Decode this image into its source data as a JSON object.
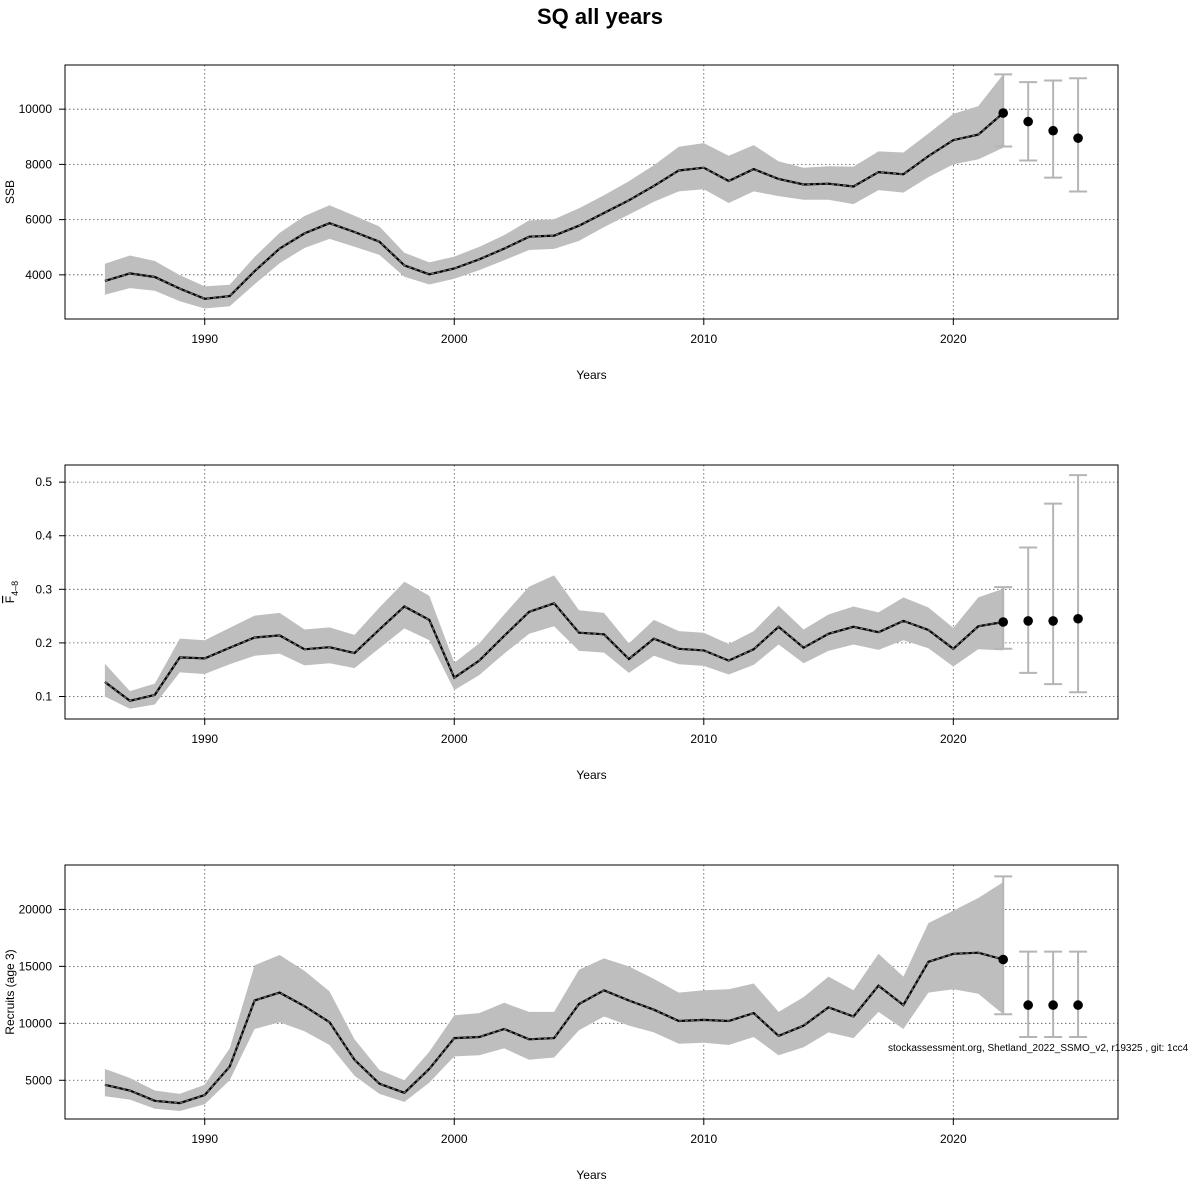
{
  "title": "SQ all years",
  "footnote": "stockassessment.org, Shetland_2022_SSMO_v2, r19325 , git: 1cc4",
  "chart_data": [
    {
      "type": "line",
      "ylabel": "SSB",
      "xlabel": "Years",
      "xlim": [
        1984.4,
        2026.6
      ],
      "ylim": [
        2400,
        11600
      ],
      "xticks": [
        1990,
        2000,
        2010,
        2020
      ],
      "yticks": [
        4000,
        6000,
        8000,
        10000
      ],
      "grid": true,
      "x": [
        1986,
        1987,
        1988,
        1989,
        1990,
        1991,
        1992,
        1993,
        1994,
        1995,
        1996,
        1997,
        1998,
        1999,
        2000,
        2001,
        2002,
        2003,
        2004,
        2005,
        2006,
        2007,
        2008,
        2009,
        2010,
        2011,
        2012,
        2013,
        2014,
        2015,
        2016,
        2017,
        2018,
        2019,
        2020,
        2021,
        2022
      ],
      "estimate": [
        3780,
        4050,
        3920,
        3500,
        3130,
        3230,
        4130,
        4950,
        5500,
        5870,
        5550,
        5200,
        4340,
        4020,
        4230,
        4560,
        4950,
        5380,
        5420,
        5780,
        6240,
        6700,
        7220,
        7780,
        7880,
        7400,
        7830,
        7470,
        7270,
        7300,
        7200,
        7720,
        7640,
        8300,
        8880,
        9080,
        9860
      ],
      "lower": [
        3280,
        3520,
        3420,
        3040,
        2780,
        2860,
        3660,
        4420,
        4970,
        5300,
        5020,
        4720,
        3930,
        3650,
        3860,
        4170,
        4530,
        4900,
        4940,
        5230,
        5730,
        6180,
        6650,
        7020,
        7100,
        6600,
        7020,
        6850,
        6720,
        6720,
        6560,
        7070,
        6980,
        7540,
        8000,
        8180,
        8600
      ],
      "upper": [
        4400,
        4700,
        4500,
        3990,
        3580,
        3640,
        4650,
        5520,
        6130,
        6520,
        6140,
        5750,
        4800,
        4450,
        4660,
        5010,
        5440,
        5970,
        6010,
        6410,
        6880,
        7390,
        7970,
        8640,
        8770,
        8310,
        8700,
        8110,
        7880,
        7930,
        7920,
        8470,
        8430,
        9120,
        9830,
        10110,
        11260
      ],
      "forecast": {
        "x": [
          2022,
          2023,
          2024,
          2025
        ],
        "median": [
          9860,
          9550,
          9220,
          8950
        ],
        "lower": [
          8650,
          8140,
          7520,
          7020
        ],
        "upper": [
          11260,
          10980,
          11040,
          11120
        ]
      }
    },
    {
      "type": "line",
      "ylabel": "F4–8",
      "ylabel_main": "F",
      "ylabel_sub": "4–8",
      "xlabel": "Years",
      "xlim": [
        1984.4,
        2026.6
      ],
      "ylim": [
        0.058,
        0.532
      ],
      "xticks": [
        1990,
        2000,
        2010,
        2020
      ],
      "yticks": [
        0.1,
        0.2,
        0.3,
        0.4,
        0.5
      ],
      "grid": true,
      "x": [
        1986,
        1987,
        1988,
        1989,
        1990,
        1991,
        1992,
        1993,
        1994,
        1995,
        1996,
        1997,
        1998,
        1999,
        2000,
        2001,
        2002,
        2003,
        2004,
        2005,
        2006,
        2007,
        2008,
        2009,
        2010,
        2011,
        2012,
        2013,
        2014,
        2015,
        2016,
        2017,
        2018,
        2019,
        2020,
        2021,
        2022
      ],
      "estimate": [
        0.127,
        0.092,
        0.103,
        0.173,
        0.171,
        0.191,
        0.21,
        0.214,
        0.188,
        0.192,
        0.181,
        0.225,
        0.268,
        0.243,
        0.135,
        0.167,
        0.213,
        0.258,
        0.274,
        0.219,
        0.216,
        0.17,
        0.208,
        0.189,
        0.186,
        0.167,
        0.188,
        0.23,
        0.191,
        0.217,
        0.23,
        0.22,
        0.241,
        0.224,
        0.189,
        0.231,
        0.239
      ],
      "lower": [
        0.1,
        0.077,
        0.085,
        0.145,
        0.142,
        0.16,
        0.176,
        0.18,
        0.158,
        0.162,
        0.153,
        0.19,
        0.227,
        0.205,
        0.112,
        0.14,
        0.18,
        0.217,
        0.231,
        0.185,
        0.182,
        0.144,
        0.176,
        0.16,
        0.157,
        0.141,
        0.159,
        0.197,
        0.162,
        0.185,
        0.197,
        0.187,
        0.205,
        0.19,
        0.156,
        0.188,
        0.186
      ],
      "upper": [
        0.161,
        0.11,
        0.124,
        0.208,
        0.205,
        0.228,
        0.251,
        0.256,
        0.225,
        0.229,
        0.215,
        0.266,
        0.314,
        0.288,
        0.163,
        0.199,
        0.253,
        0.305,
        0.326,
        0.261,
        0.256,
        0.199,
        0.243,
        0.222,
        0.219,
        0.198,
        0.222,
        0.269,
        0.225,
        0.253,
        0.268,
        0.257,
        0.285,
        0.266,
        0.228,
        0.285,
        0.301
      ],
      "forecast": {
        "x": [
          2022,
          2023,
          2024,
          2025
        ],
        "median": [
          0.239,
          0.241,
          0.241,
          0.245
        ],
        "lower": [
          0.189,
          0.144,
          0.123,
          0.108
        ],
        "upper": [
          0.304,
          0.378,
          0.46,
          0.513
        ]
      }
    },
    {
      "type": "line",
      "ylabel": "Recruits (age 3)",
      "xlabel": "Years",
      "xlim": [
        1984.4,
        2026.6
      ],
      "ylim": [
        1600,
        23900
      ],
      "xticks": [
        1990,
        2000,
        2010,
        2020
      ],
      "yticks": [
        5000,
        10000,
        15000,
        20000
      ],
      "grid": true,
      "x": [
        1986,
        1987,
        1988,
        1989,
        1990,
        1991,
        1992,
        1993,
        1994,
        1995,
        1996,
        1997,
        1998,
        1999,
        2000,
        2001,
        2002,
        2003,
        2004,
        2005,
        2006,
        2007,
        2008,
        2009,
        2010,
        2011,
        2012,
        2013,
        2014,
        2015,
        2016,
        2017,
        2018,
        2019,
        2020,
        2021,
        2022
      ],
      "estimate": [
        4600,
        4100,
        3200,
        3000,
        3700,
        6200,
        12000,
        12700,
        11500,
        10100,
        6800,
        4700,
        3900,
        6000,
        8700,
        8800,
        9500,
        8600,
        8700,
        11700,
        12900,
        12000,
        11200,
        10200,
        10300,
        10200,
        10900,
        8900,
        9800,
        11400,
        10600,
        13300,
        11600,
        15400,
        16100,
        16200,
        15600
      ],
      "lower": [
        3600,
        3300,
        2500,
        2300,
        2900,
        5000,
        9500,
        10100,
        9300,
        8100,
        5400,
        3800,
        3100,
        4800,
        7100,
        7200,
        7800,
        6800,
        7000,
        9400,
        10600,
        9800,
        9200,
        8200,
        8300,
        8100,
        8800,
        7200,
        7900,
        9200,
        8700,
        11000,
        9500,
        12700,
        13000,
        12600,
        10800
      ],
      "upper": [
        6000,
        5200,
        4100,
        3800,
        4600,
        7800,
        15100,
        16000,
        14600,
        12800,
        8600,
        5900,
        5000,
        7500,
        10700,
        10900,
        11800,
        11000,
        11000,
        14700,
        15700,
        15000,
        13900,
        12700,
        12900,
        13000,
        13500,
        11000,
        12300,
        14100,
        12900,
        16100,
        14100,
        18800,
        19900,
        21000,
        22400
      ],
      "forecast": {
        "x": [
          2022,
          2023,
          2024,
          2025
        ],
        "median": [
          15600,
          11600,
          11600,
          11600
        ],
        "lower": [
          10800,
          8800,
          8800,
          8800
        ],
        "upper": [
          22900,
          16300,
          16300,
          16300
        ]
      }
    }
  ]
}
